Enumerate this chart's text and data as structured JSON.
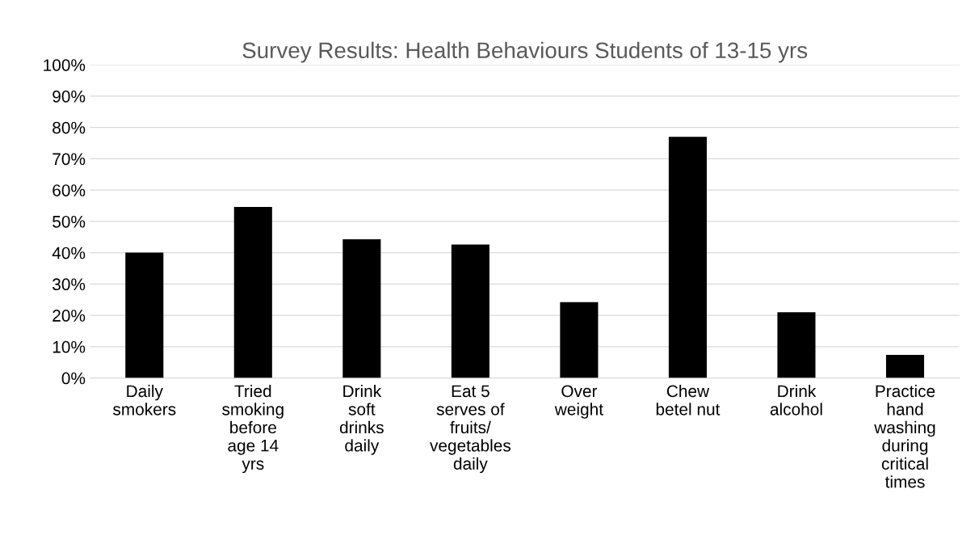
{
  "chart_data": {
    "type": "bar",
    "title": "Survey Results: Health Behaviours Students of 13-15 yrs",
    "categories": [
      "Daily\nsmokers",
      "Tried\nsmoking\nbefore\nage 14\nyrs",
      "Drink\nsoft\ndrinks\ndaily",
      "Eat 5\nserves of\nfruits/\nvegetables\ndaily",
      "Over\nweight",
      "Chew\nbetel nut",
      "Drink\nalcohol",
      "Practice\nhand\nwashing\nduring\ncritical\ntimes"
    ],
    "values": [
      40,
      54.6,
      44.3,
      42.6,
      24.2,
      77,
      21,
      7.4
    ],
    "color": "#000000",
    "ylim": [
      0,
      100
    ],
    "yticks": [
      {
        "value": 0,
        "label": "0%"
      },
      {
        "value": 10,
        "label": "10%"
      },
      {
        "value": 20,
        "label": "20%"
      },
      {
        "value": 30,
        "label": "30%"
      },
      {
        "value": 40,
        "label": "40%"
      },
      {
        "value": 50,
        "label": "50%"
      },
      {
        "value": 60,
        "label": "60%"
      },
      {
        "value": 70,
        "label": "70%"
      },
      {
        "value": 80,
        "label": "80%"
      },
      {
        "value": 90,
        "label": "90%"
      },
      {
        "value": 100,
        "label": "100%"
      }
    ],
    "grid": "y"
  }
}
